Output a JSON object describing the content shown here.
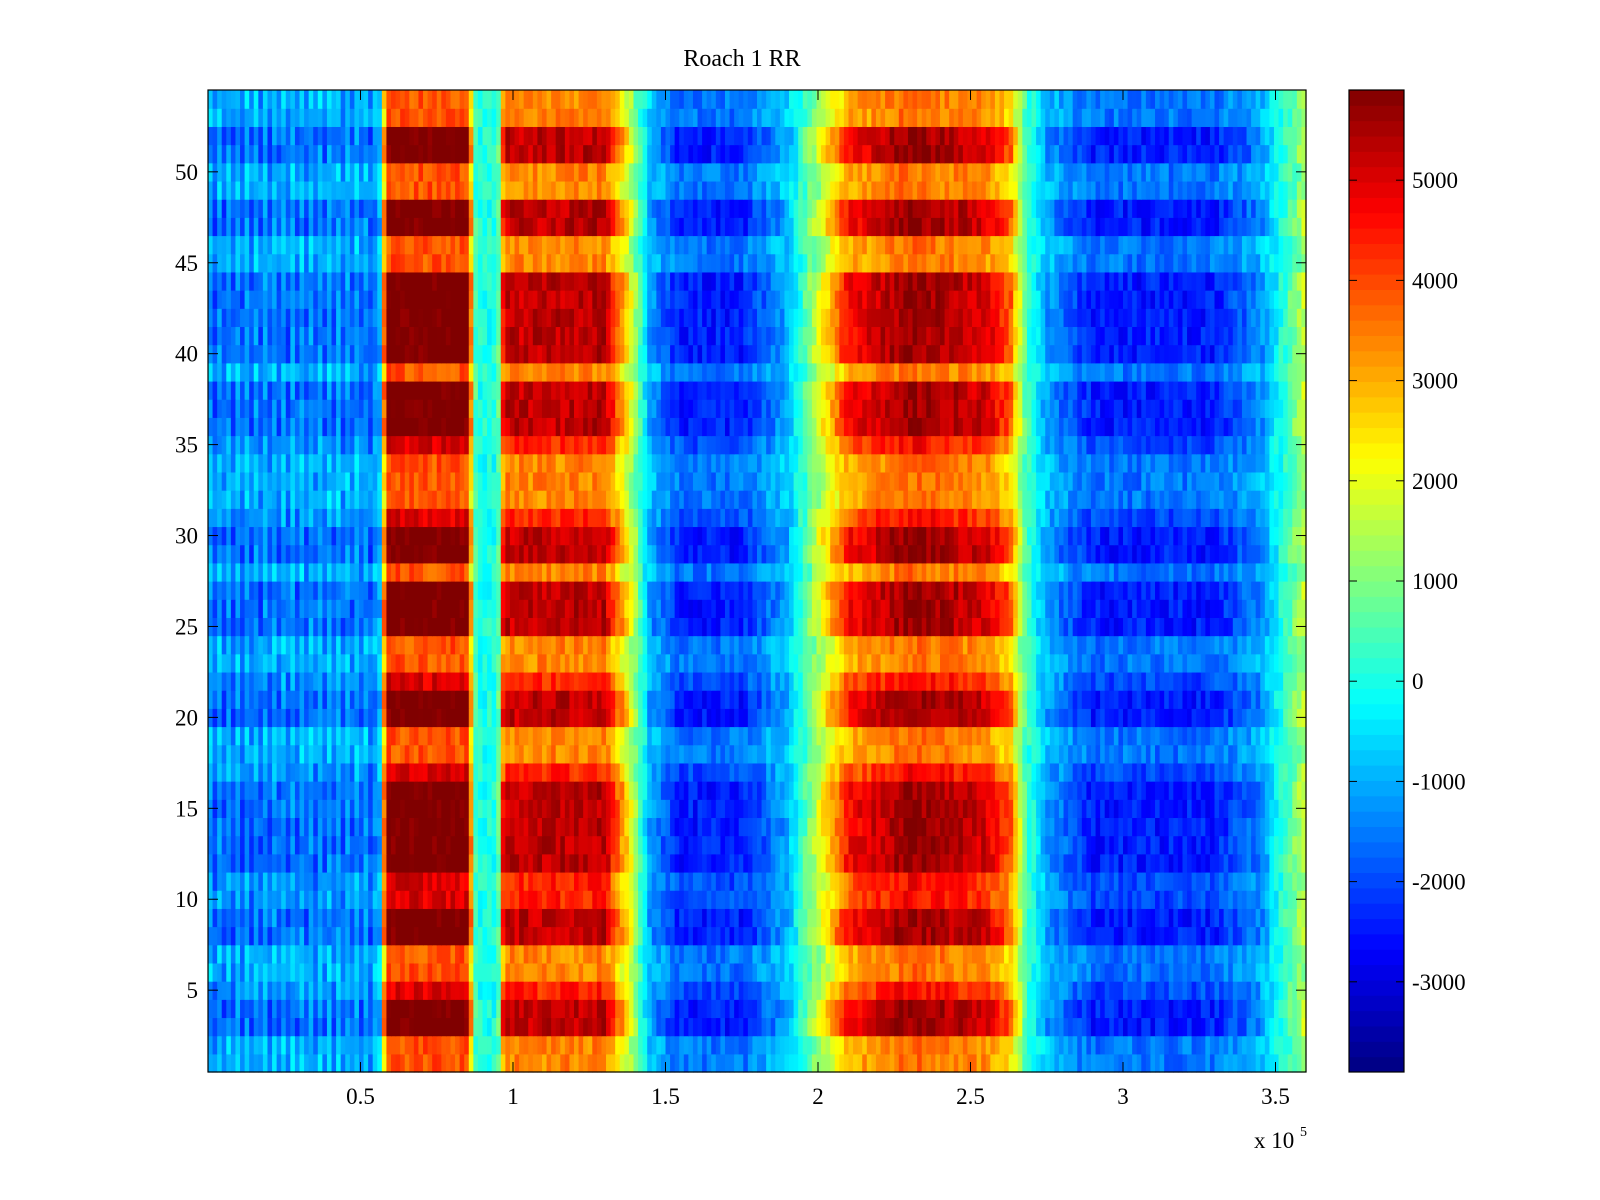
{
  "chart_data": {
    "type": "heatmap",
    "title": "Roach 1 RR",
    "xlabel": "",
    "ylabel": "",
    "x_multiplier_label": {
      "base": "x 10",
      "exponent": "5"
    },
    "xlim": [
      0,
      3.6
    ],
    "ylim": [
      0.5,
      54.5
    ],
    "x_ticks": [
      0.5,
      1,
      1.5,
      2,
      2.5,
      3,
      3.5
    ],
    "x_tick_labels": [
      "0.5",
      "1",
      "1.5",
      "2",
      "2.5",
      "3",
      "3.5"
    ],
    "y_ticks": [
      5,
      10,
      15,
      20,
      25,
      30,
      35,
      40,
      45,
      50
    ],
    "y_tick_labels": [
      "5",
      "10",
      "15",
      "20",
      "25",
      "30",
      "35",
      "40",
      "45",
      "50"
    ],
    "colormap": "jet",
    "clim": [
      -3900,
      5900
    ],
    "colorbar_ticks": [
      -3000,
      -2000,
      -1000,
      0,
      1000,
      2000,
      3000,
      4000,
      5000
    ],
    "colorbar_tick_labels": [
      "-3000",
      "-2000",
      "-1000",
      "0",
      "1000",
      "2000",
      "3000",
      "4000",
      "5000"
    ],
    "rows": 54,
    "x_profile": [
      {
        "x": 0.0,
        "value": -1400
      },
      {
        "x": 0.5,
        "value": -1300
      },
      {
        "x": 0.56,
        "value": -1500
      },
      {
        "x": 0.585,
        "value": 5000
      },
      {
        "x": 0.85,
        "value": 5000
      },
      {
        "x": 0.88,
        "value": 0
      },
      {
        "x": 0.95,
        "value": 0
      },
      {
        "x": 0.97,
        "value": 4300
      },
      {
        "x": 1.3,
        "value": 4400
      },
      {
        "x": 1.38,
        "value": 2000
      },
      {
        "x": 1.45,
        "value": -1000
      },
      {
        "x": 1.55,
        "value": -2000
      },
      {
        "x": 1.75,
        "value": -2000
      },
      {
        "x": 1.9,
        "value": -900
      },
      {
        "x": 2.0,
        "value": 1500
      },
      {
        "x": 2.1,
        "value": 3800
      },
      {
        "x": 2.3,
        "value": 4700
      },
      {
        "x": 2.55,
        "value": 4200
      },
      {
        "x": 2.63,
        "value": 3200
      },
      {
        "x": 2.68,
        "value": 500
      },
      {
        "x": 2.75,
        "value": -1000
      },
      {
        "x": 2.9,
        "value": -2000
      },
      {
        "x": 3.3,
        "value": -2000
      },
      {
        "x": 3.45,
        "value": -1200
      },
      {
        "x": 3.6,
        "value": 1500
      }
    ],
    "strong_rows": [
      3,
      4,
      8,
      9,
      12,
      13,
      14,
      15,
      16,
      20,
      21,
      25,
      26,
      27,
      29,
      30,
      36,
      37,
      38,
      40,
      41,
      42,
      43,
      44,
      47,
      48,
      51,
      52
    ],
    "weak_rows": [
      1,
      2,
      6,
      7,
      18,
      19,
      23,
      24,
      28,
      32,
      33,
      34,
      39,
      45,
      46,
      49,
      50,
      53,
      54
    ]
  }
}
